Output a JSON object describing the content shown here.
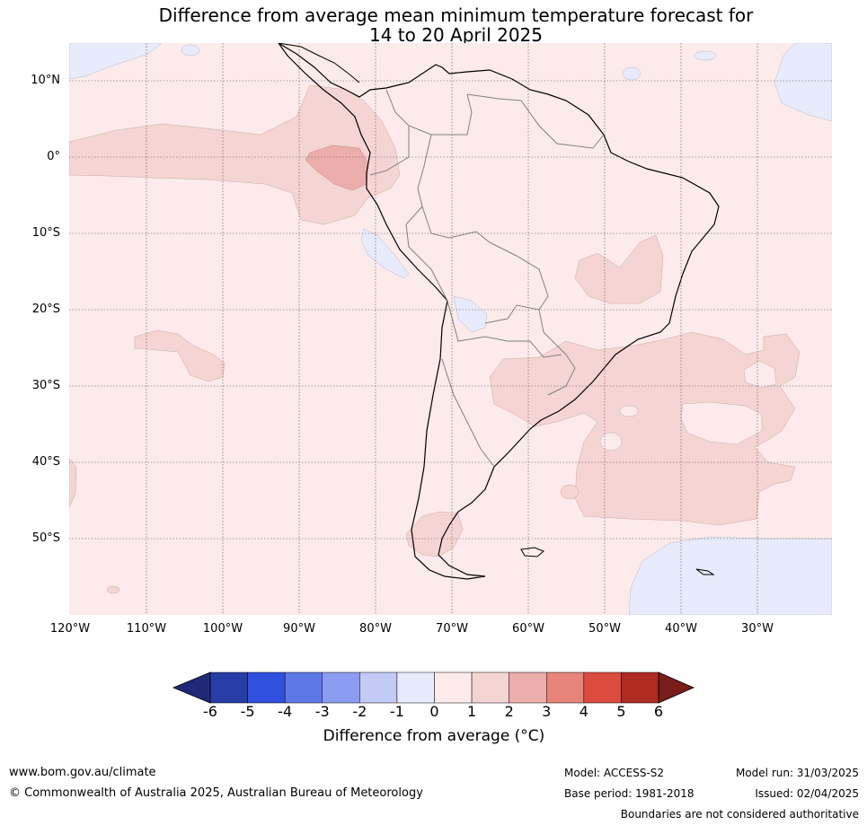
{
  "title": {
    "line1": "Difference from average mean minimum temperature forecast for",
    "line2": "14 to 20 April 2025"
  },
  "map": {
    "region": "South America",
    "lat_labels": [
      "10°N",
      "0°",
      "10°S",
      "20°S",
      "30°S",
      "40°S",
      "50°S"
    ],
    "lon_labels": [
      "120°W",
      "110°W",
      "100°W",
      "90°W",
      "80°W",
      "70°W",
      "60°W",
      "50°W",
      "40°W",
      "30°W"
    ],
    "gridlines": true
  },
  "colorbar": {
    "ticks": [
      "-6",
      "-5",
      "-4",
      "-3",
      "-2",
      "-1",
      "0",
      "1",
      "2",
      "3",
      "4",
      "5",
      "6"
    ],
    "colors": [
      "#283ca8",
      "#3050e0",
      "#5f78e8",
      "#8a9df0",
      "#c2caf5",
      "#e8ebfb",
      "#fcebea",
      "#f5d5d3",
      "#ecaeaa",
      "#e8847c",
      "#db4b3e",
      "#ae2b21"
    ],
    "under_color": "#1e2a78",
    "over_color": "#7a1c18",
    "label": "Difference from average (°C)"
  },
  "footer": {
    "website": "www.bom.gov.au/climate",
    "copyright": "© Commonwealth of Australia 2025, Australian Bureau of Meteorology",
    "model": "Model: ACCESS-S2",
    "base_period": "Base period: 1981-2018",
    "model_run": "Model run: 31/03/2025",
    "issued": "Issued: 02/04/2025",
    "disclaimer": "Boundaries are not considered authoritative"
  }
}
